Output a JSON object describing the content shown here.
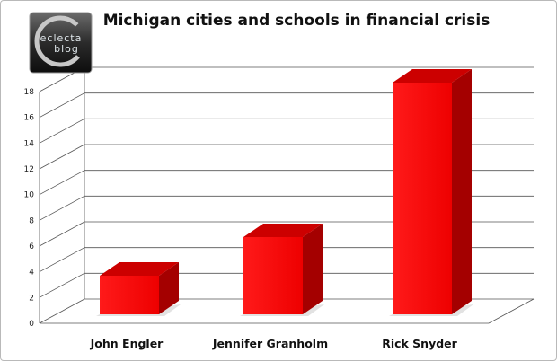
{
  "chart_data": {
    "type": "bar",
    "title": "Michigan cities and schools in financial crisis",
    "categories": [
      "John Engler",
      "Jennifer Granholm",
      "Rick Snyder"
    ],
    "values": [
      3,
      6,
      18
    ],
    "ylim": [
      0,
      18
    ],
    "yticks": [
      "0",
      "2",
      "4",
      "6",
      "8",
      "10",
      "12",
      "14",
      "16",
      "18"
    ],
    "grid": true,
    "bar_color": "#ff0000",
    "three_d": true
  },
  "logo": {
    "line1": "eclecta",
    "line2": "blog",
    "icon": "eclecta-blog-logo"
  }
}
